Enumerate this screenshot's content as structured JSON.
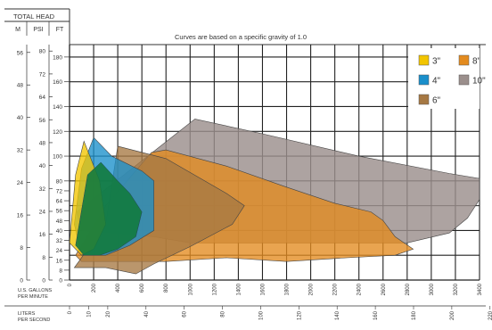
{
  "header": {
    "title": "TOTAL HEAD",
    "units": [
      "M",
      "PSI",
      "FT"
    ]
  },
  "note": "Curves are based on a specific gravity of 1.0",
  "chart_data": {
    "type": "area",
    "x_axis": {
      "label_lines": [
        "U.S. GALLONS",
        "PER MINUTE"
      ],
      "range": [
        0,
        3400
      ],
      "ticks": [
        0,
        200,
        400,
        600,
        800,
        1000,
        1200,
        1400,
        1600,
        1800,
        2000,
        2200,
        2400,
        2600,
        2800,
        3000,
        3200,
        3400
      ],
      "grid_step": 200
    },
    "secondary_x_axis": {
      "label_lines": [
        "LITERS",
        "PER SECOND"
      ],
      "ticks": [
        0,
        10,
        20,
        40,
        60,
        80,
        100,
        120,
        140,
        160,
        180,
        200,
        220
      ]
    },
    "y_axis_ft": {
      "unit": "FT",
      "range": [
        0,
        190
      ],
      "ticks": [
        0,
        8,
        16,
        24,
        32,
        40,
        48,
        56,
        64,
        72,
        80,
        100,
        120,
        140,
        160,
        180
      ],
      "grid_step": 20
    },
    "y_axis_psi": {
      "unit": "PSI",
      "ticks": [
        0,
        8,
        16,
        24,
        32,
        40,
        48,
        56,
        64,
        72,
        80
      ]
    },
    "y_axis_m": {
      "unit": "M",
      "ticks": [
        0,
        8,
        16,
        24,
        32,
        40,
        48,
        56
      ]
    },
    "legend_position": "top-right",
    "series": [
      {
        "name": "10\"",
        "color": "#9b8f8c",
        "points": [
          [
            60,
            55
          ],
          [
            1040,
            130
          ],
          [
            1600,
            118
          ],
          [
            2400,
            100
          ],
          [
            3150,
            86
          ],
          [
            3400,
            82
          ],
          [
            3400,
            65
          ],
          [
            3300,
            50
          ],
          [
            3150,
            38
          ],
          [
            2800,
            30
          ],
          [
            2200,
            30
          ],
          [
            1600,
            30
          ],
          [
            1000,
            30
          ],
          [
            700,
            35
          ],
          [
            100,
            40
          ]
        ]
      },
      {
        "name": "8\"",
        "color": "#e38b1f",
        "points": [
          [
            50,
            20
          ],
          [
            300,
            60
          ],
          [
            680,
            103
          ],
          [
            800,
            105
          ],
          [
            1300,
            92
          ],
          [
            1800,
            75
          ],
          [
            2200,
            62
          ],
          [
            2500,
            55
          ],
          [
            2600,
            48
          ],
          [
            2700,
            35
          ],
          [
            2850,
            25
          ],
          [
            2700,
            20
          ],
          [
            2300,
            18
          ],
          [
            1800,
            15
          ],
          [
            1300,
            18
          ],
          [
            800,
            15
          ],
          [
            100,
            15
          ]
        ]
      },
      {
        "name": "6\"",
        "color": "#a67843",
        "points": [
          [
            40,
            10
          ],
          [
            300,
            45
          ],
          [
            400,
            108
          ],
          [
            800,
            98
          ],
          [
            1300,
            70
          ],
          [
            1450,
            60
          ],
          [
            1350,
            45
          ],
          [
            1000,
            27
          ],
          [
            700,
            13
          ],
          [
            550,
            5
          ],
          [
            300,
            10
          ]
        ]
      },
      {
        "name": "4\"",
        "color": "#1a8fcb",
        "points": [
          [
            40,
            45
          ],
          [
            100,
            90
          ],
          [
            200,
            115
          ],
          [
            350,
            100
          ],
          [
            600,
            88
          ],
          [
            700,
            80
          ],
          [
            700,
            40
          ],
          [
            500,
            28
          ],
          [
            300,
            20
          ],
          [
            100,
            20
          ]
        ]
      },
      {
        "name": "3\"",
        "color": "#f2c500",
        "points": [
          [
            0,
            30
          ],
          [
            50,
            85
          ],
          [
            120,
            112
          ],
          [
            250,
            80
          ],
          [
            300,
            45
          ],
          [
            200,
            25
          ],
          [
            100,
            20
          ]
        ]
      }
    ],
    "overlay_color": "#127a3e"
  }
}
